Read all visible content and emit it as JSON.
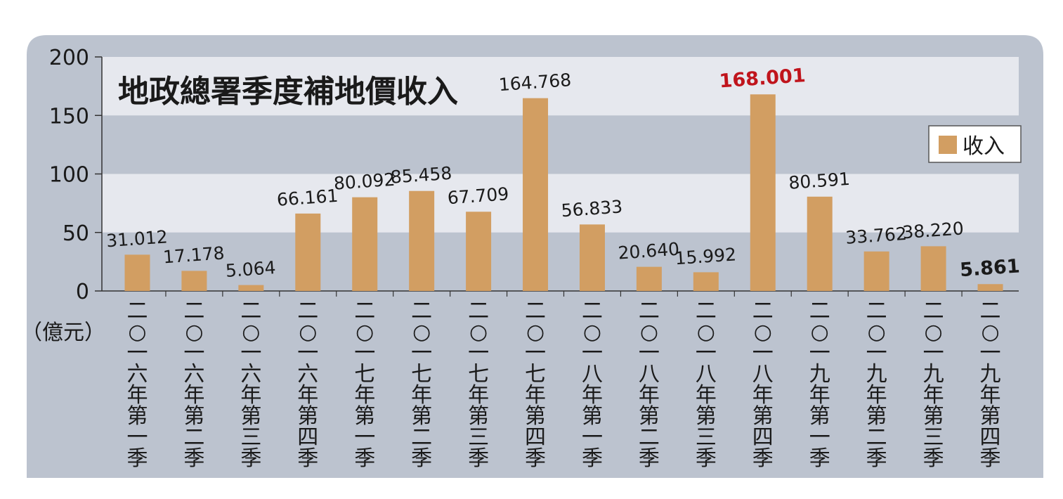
{
  "colors": {
    "panel": "#BCC3CF",
    "band_light": "#E6E8EE",
    "band_dark": "#BCC3CF",
    "bar": "#D29E62",
    "axis": "#333333",
    "text": "#1a1a1a",
    "highlight": "#C0141C"
  },
  "chart_data": {
    "type": "bar",
    "title": "地政總署季度補地價收入",
    "ylabel": "（億元）",
    "ylim": [
      0,
      200
    ],
    "yticks": [
      "0",
      "50",
      "100",
      "150",
      "200"
    ],
    "legend": {
      "label": "收入",
      "position": "top-right"
    },
    "categories": [
      "二○一六年第一季",
      "二○一六年第二季",
      "二○一六年第三季",
      "二○一六年第四季",
      "二○一七年第一季",
      "二○一七年第二季",
      "二○一七年第三季",
      "二○一七年第四季",
      "二○一八年第一季",
      "二○一八年第二季",
      "二○一八年第三季",
      "二○一八年第四季",
      "二○一九年第一季",
      "二○一九年第二季",
      "二○一九年第三季",
      "二○一九年第四季"
    ],
    "series": [
      {
        "name": "收入",
        "values": [
          31.012,
          17.178,
          5.064,
          66.161,
          80.092,
          85.458,
          67.709,
          164.768,
          56.833,
          20.64,
          15.992,
          168.001,
          80.591,
          33.762,
          38.22,
          5.861
        ],
        "labels": [
          "31.012",
          "17.178",
          "5.064",
          "66.161",
          "80.092",
          "85.458",
          "67.709",
          "164.768",
          "56.833",
          "20.640",
          "15.992",
          "168.001",
          "80.591",
          "33.762",
          "38.220",
          "5.861"
        ]
      }
    ],
    "highlights": {
      "red_index": 11,
      "bold_index": 15
    }
  }
}
